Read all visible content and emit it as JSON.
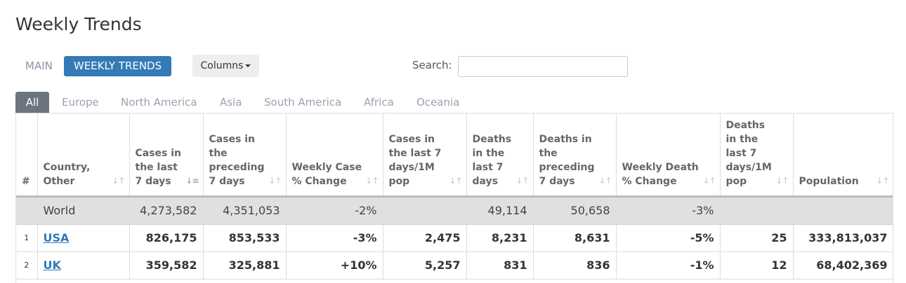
{
  "page": {
    "title": "Weekly Trends"
  },
  "view_tabs": {
    "main_label": "MAIN",
    "weekly_label": "WEEKLY TRENDS"
  },
  "toolbar": {
    "columns_label": "Columns",
    "search_label": "Search:",
    "search_value": ""
  },
  "region_tabs": [
    "All",
    "Europe",
    "North America",
    "Asia",
    "South America",
    "Africa",
    "Oceania"
  ],
  "table": {
    "headers": {
      "rank": "#",
      "country": "Country, Other",
      "cases_7": "Cases in the last 7 days",
      "cases_prev": "Cases in the preceding 7 days",
      "case_change": "Weekly Case % Change",
      "cases_1m": "Cases in the last 7 days/1M pop",
      "deaths_7": "Deaths in the last 7 days",
      "deaths_prev": "Deaths in the preceding 7 days",
      "death_change": "Weekly Death % Change",
      "deaths_1m": "Deaths in the last 7 days/1M pop",
      "population": "Population"
    },
    "world": {
      "rank": "",
      "country": "World",
      "cases_7": "4,273,582",
      "cases_prev": "4,351,053",
      "case_change": "-2%",
      "cases_1m": "",
      "deaths_7": "49,114",
      "deaths_prev": "50,658",
      "death_change": "-3%",
      "deaths_1m": "",
      "population": ""
    },
    "rows": [
      {
        "rank": "1",
        "country": "USA",
        "cases_7": "826,175",
        "cases_prev": "853,533",
        "case_change": "-3%",
        "cases_1m": "2,475",
        "deaths_7": "8,231",
        "deaths_prev": "8,631",
        "death_change": "-5%",
        "deaths_1m": "25",
        "population": "333,813,037"
      },
      {
        "rank": "2",
        "country": "UK",
        "cases_7": "359,582",
        "cases_prev": "325,881",
        "case_change": "+10%",
        "cases_1m": "5,257",
        "deaths_7": "831",
        "deaths_prev": "836",
        "death_change": "-1%",
        "deaths_1m": "12",
        "population": "68,402,369"
      }
    ]
  },
  "colors": {
    "accent": "#337ab7",
    "active_region": "#6c757d",
    "world_row": "#e0e0e0"
  }
}
